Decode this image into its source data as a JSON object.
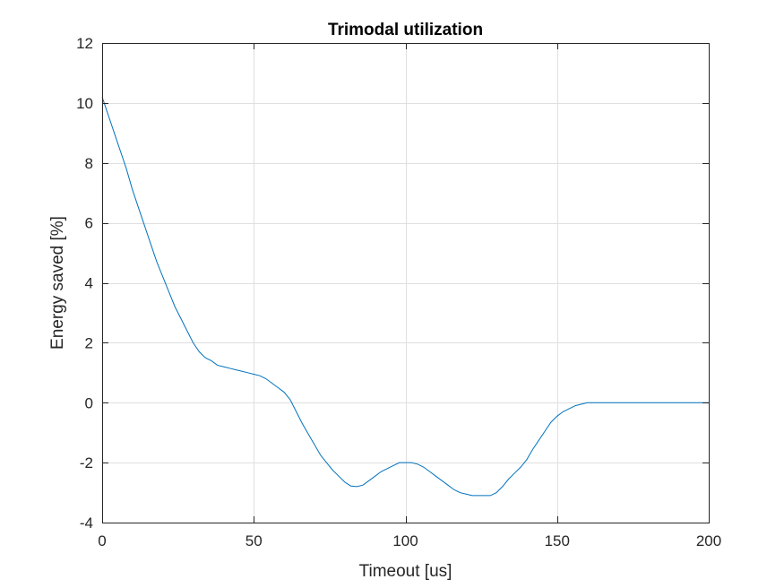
{
  "chart_data": {
    "type": "line",
    "title": "Trimodal utilization",
    "xlabel": "Timeout [us]",
    "ylabel": "Energy saved [%]",
    "xlim": [
      0,
      200
    ],
    "ylim": [
      -4,
      12
    ],
    "xticks": [
      0,
      50,
      100,
      150,
      200
    ],
    "yticks": [
      -4,
      -2,
      0,
      2,
      4,
      6,
      8,
      10,
      12
    ],
    "grid": true,
    "series": [
      {
        "name": "Energy saved",
        "color": "#0072bd",
        "x": [
          0,
          2,
          4,
          6,
          8,
          10,
          12,
          14,
          16,
          18,
          20,
          22,
          24,
          26,
          28,
          30,
          32,
          34,
          36,
          38,
          40,
          42,
          44,
          46,
          48,
          50,
          52,
          54,
          56,
          58,
          60,
          62,
          64,
          66,
          68,
          70,
          72,
          74,
          76,
          78,
          80,
          82,
          84,
          86,
          88,
          90,
          92,
          94,
          96,
          98,
          100,
          102,
          104,
          106,
          108,
          110,
          112,
          114,
          116,
          118,
          120,
          122,
          124,
          126,
          128,
          130,
          132,
          134,
          136,
          138,
          140,
          142,
          144,
          146,
          148,
          150,
          152,
          154,
          156,
          158,
          160,
          162,
          164,
          166,
          168,
          170,
          175,
          180,
          185,
          190,
          195,
          200
        ],
        "values": [
          10.2,
          9.6,
          9.0,
          8.4,
          7.8,
          7.1,
          6.5,
          5.9,
          5.3,
          4.7,
          4.2,
          3.7,
          3.2,
          2.8,
          2.4,
          2.0,
          1.7,
          1.5,
          1.4,
          1.25,
          1.2,
          1.15,
          1.1,
          1.05,
          1.0,
          0.95,
          0.9,
          0.8,
          0.65,
          0.5,
          0.35,
          0.1,
          -0.3,
          -0.7,
          -1.05,
          -1.4,
          -1.75,
          -2.0,
          -2.25,
          -2.45,
          -2.65,
          -2.78,
          -2.8,
          -2.75,
          -2.6,
          -2.45,
          -2.3,
          -2.2,
          -2.1,
          -2.0,
          -2.0,
          -2.0,
          -2.05,
          -2.15,
          -2.3,
          -2.45,
          -2.6,
          -2.75,
          -2.9,
          -3.0,
          -3.05,
          -3.1,
          -3.1,
          -3.1,
          -3.1,
          -3.0,
          -2.8,
          -2.55,
          -2.35,
          -2.15,
          -1.9,
          -1.55,
          -1.25,
          -0.95,
          -0.65,
          -0.45,
          -0.3,
          -0.2,
          -0.1,
          -0.05,
          0.0,
          0.0,
          0.0,
          0.0,
          0.0,
          0.0,
          0.0,
          0.0,
          0.0,
          0.0,
          0.0,
          0.0
        ]
      }
    ]
  }
}
